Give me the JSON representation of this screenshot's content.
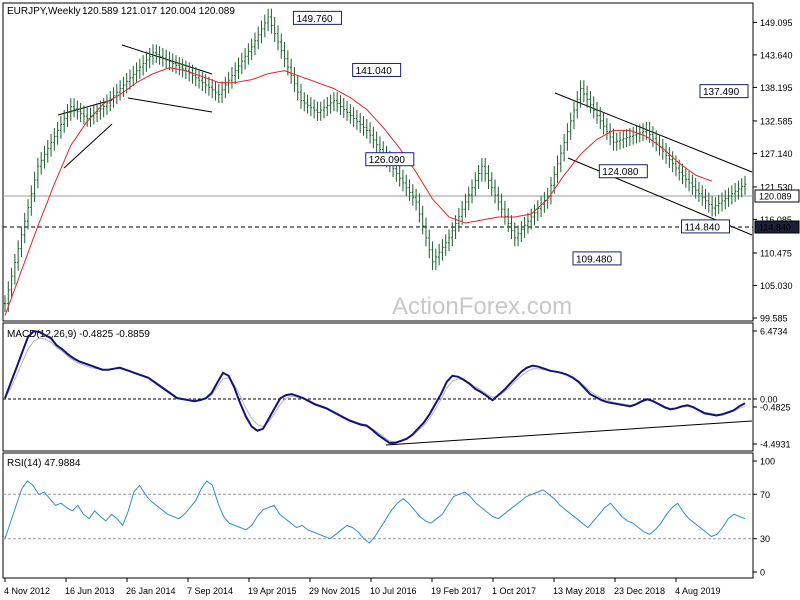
{
  "chart_data": {
    "type": "line",
    "title": "EURJPY,Weekly",
    "ohlc_header": "120.589 121.017 120.004 120.089",
    "watermark": "ActionForex.com",
    "x_ticks": [
      "4 Nov 2012",
      "16 Jun 2013",
      "26 Jan 2014",
      "7 Sep 2014",
      "19 Apr 2015",
      "29 Nov 2015",
      "10 Jul 2016",
      "19 Feb 2017",
      "1 Oct 2017",
      "13 May 2018",
      "23 Dec 2018",
      "4 Aug 2019"
    ],
    "price_panel": {
      "y_ticks": [
        "149.095",
        "143.640",
        "138.195",
        "132.585",
        "127.140",
        "121.530",
        "116.085",
        "110.475",
        "105.030",
        "99.585"
      ],
      "y_range": [
        99.585,
        152.0
      ],
      "current_price": "120.089",
      "support_level": "114.840",
      "annotations": [
        {
          "text": "149.760",
          "x_index": 95,
          "y": 149.76
        },
        {
          "text": "141.040",
          "x_index": 113,
          "y": 141.04
        },
        {
          "text": "126.090",
          "x_index": 117,
          "y": 126.09
        },
        {
          "text": "124.080",
          "x_index": 188,
          "y": 124.08
        },
        {
          "text": "114.840",
          "x_index": 213,
          "y": 114.84
        },
        {
          "text": "109.480",
          "x_index": 180,
          "y": 109.48
        },
        {
          "text": "137.490",
          "x_index": 268,
          "y": 137.49
        }
      ],
      "close_series": [
        102.0,
        104.3,
        106.6,
        108.9,
        111.2,
        113.5,
        115.8,
        118.1,
        120.4,
        122.7,
        125.0,
        126.0,
        127.0,
        128.0,
        129.0,
        130.0,
        131.0,
        132.0,
        133.0,
        134.0,
        135.0,
        134.6,
        134.2,
        133.8,
        133.4,
        133.0,
        133.4,
        133.8,
        134.2,
        134.6,
        135.0,
        135.6,
        136.2,
        136.8,
        137.4,
        138.0,
        138.6,
        139.2,
        139.8,
        140.4,
        141.0,
        141.6,
        142.2,
        142.8,
        143.4,
        144.0,
        143.7,
        143.4,
        143.1,
        142.8,
        142.5,
        142.2,
        141.9,
        141.6,
        141.3,
        141.0,
        140.6,
        140.2,
        139.8,
        139.4,
        139.0,
        138.6,
        138.2,
        137.8,
        137.4,
        137.0,
        137.8,
        138.6,
        139.4,
        140.2,
        141.0,
        141.8,
        142.6,
        143.4,
        144.2,
        145.0,
        146.0,
        147.0,
        148.0,
        149.0,
        150.0,
        148.6,
        147.2,
        145.8,
        144.4,
        143.0,
        141.6,
        140.2,
        138.8,
        137.4,
        136.0,
        135.6,
        135.2,
        134.8,
        134.4,
        134.0,
        134.4,
        134.8,
        135.2,
        135.6,
        136.0,
        135.5,
        135.0,
        134.5,
        134.0,
        133.5,
        133.0,
        132.5,
        132.0,
        131.5,
        131.0,
        130.2,
        129.4,
        128.6,
        127.8,
        127.0,
        126.2,
        125.4,
        124.6,
        123.8,
        123.0,
        122.2,
        121.4,
        120.6,
        119.8,
        119.0,
        117.0,
        115.0,
        113.0,
        111.0,
        109.0,
        109.8,
        110.6,
        111.4,
        112.2,
        113.0,
        114.2,
        115.4,
        116.6,
        117.8,
        119.0,
        120.2,
        121.4,
        122.6,
        123.8,
        125.0,
        123.8,
        122.6,
        121.4,
        120.2,
        119.0,
        117.8,
        116.6,
        115.4,
        114.2,
        113.0,
        113.7,
        114.4,
        115.1,
        115.8,
        116.5,
        117.2,
        117.9,
        118.6,
        119.3,
        120.0,
        121.8,
        123.6,
        125.4,
        127.2,
        129.0,
        130.8,
        132.6,
        134.4,
        136.2,
        138.0,
        137.1,
        136.2,
        135.3,
        134.4,
        133.5,
        132.6,
        131.7,
        130.8,
        129.9,
        129.0,
        129.2,
        129.4,
        129.6,
        129.8,
        130.0,
        130.2,
        130.4,
        130.6,
        130.8,
        131.0,
        130.3,
        129.6,
        128.9,
        128.2,
        127.5,
        126.8,
        126.1,
        125.4,
        124.7,
        124.0,
        123.4,
        122.8,
        122.2,
        121.6,
        121.0,
        120.4,
        119.8,
        119.2,
        118.6,
        118.0,
        118.4,
        118.8,
        119.2,
        119.6,
        120.0,
        120.4,
        120.8,
        121.2,
        121.6,
        122.0
      ],
      "ma_series": [
        100.0,
        101.5,
        103.0,
        104.5,
        106.0,
        107.5,
        109.0,
        110.5,
        112.0,
        113.5,
        115.0,
        116.4,
        117.8,
        119.2,
        120.6,
        122.0,
        123.3,
        124.6,
        125.9,
        127.2,
        128.5,
        129.3,
        130.1,
        130.9,
        131.7,
        132.5,
        133.1,
        133.7,
        134.3,
        134.9,
        135.5,
        135.8,
        136.1,
        136.4,
        136.7,
        137.0,
        137.4,
        137.8,
        138.2,
        138.6,
        139.0,
        139.3,
        139.6,
        139.9,
        140.2,
        140.5,
        140.7,
        140.9,
        141.1,
        141.3,
        141.5,
        141.4,
        141.3,
        141.2,
        141.1,
        141.0,
        140.8,
        140.6,
        140.4,
        140.2,
        140.0,
        139.8,
        139.6,
        139.4,
        139.2,
        139.0,
        139.0,
        139.0,
        139.0,
        139.0,
        139.0,
        139.1,
        139.2,
        139.3,
        139.4,
        139.5,
        139.7,
        139.9,
        140.1,
        140.3,
        140.5,
        140.6,
        140.7,
        140.8,
        140.9,
        141.0,
        140.8,
        140.6,
        140.4,
        140.2,
        140.0,
        139.8,
        139.6,
        139.4,
        139.2,
        139.0,
        138.8,
        138.6,
        138.4,
        138.2,
        138.0,
        137.7,
        137.4,
        137.1,
        136.8,
        136.5,
        136.1,
        135.7,
        135.3,
        134.9,
        134.5,
        133.9,
        133.3,
        132.7,
        132.1,
        131.5,
        130.8,
        130.1,
        129.4,
        128.7,
        128.0,
        127.2,
        126.4,
        125.6,
        124.8,
        124.0,
        123.1,
        122.2,
        121.3,
        120.4,
        119.5,
        118.9,
        118.3,
        117.7,
        117.1,
        116.5,
        116.3,
        116.1,
        115.9,
        115.7,
        115.5,
        115.6,
        115.7,
        115.8,
        115.9,
        116.0,
        116.1,
        116.2,
        116.3,
        116.4,
        116.5,
        116.5,
        116.5,
        116.5,
        116.5,
        116.5,
        116.6,
        116.7,
        116.8,
        116.9,
        117.0,
        117.5,
        118.0,
        118.5,
        119.0,
        119.5,
        120.3,
        121.1,
        121.9,
        122.7,
        123.5,
        124.2,
        124.9,
        125.6,
        126.3,
        127.0,
        127.5,
        128.0,
        128.5,
        129.0,
        129.5,
        129.8,
        130.1,
        130.4,
        130.7,
        131.0,
        131.0,
        131.0,
        131.0,
        131.0,
        131.0,
        130.8,
        130.6,
        130.4,
        130.2,
        130.0,
        129.6,
        129.2,
        128.8,
        128.4,
        128.0,
        127.5,
        127.0,
        126.5,
        126.0,
        125.5,
        125.1,
        124.7,
        124.3,
        123.9,
        123.5,
        123.3,
        123.1,
        122.9,
        122.7,
        122.5
      ]
    },
    "macd_panel": {
      "label": "MACD(12,26,9) -0.4825 -0.8859",
      "y_ticks": [
        "6.4734",
        "0.00",
        "-0.4825",
        "-4.4931"
      ],
      "y_range": [
        -4.9,
        7.0
      ],
      "macd_series": [
        0.0,
        1.5,
        3.0,
        4.5,
        6.0,
        6.6,
        6.5,
        6.2,
        5.9,
        5.2,
        4.8,
        4.3,
        3.9,
        3.6,
        3.4,
        3.2,
        3.0,
        2.8,
        2.8,
        2.9,
        3.0,
        2.8,
        2.6,
        2.4,
        2.2,
        2.0,
        1.6,
        1.2,
        0.8,
        0.4,
        0.0,
        -0.1,
        -0.2,
        -0.3,
        -0.2,
        0.0,
        0.5,
        1.5,
        2.5,
        2.2,
        1.0,
        -0.5,
        -1.8,
        -2.8,
        -3.2,
        -3.0,
        -2.0,
        -1.0,
        0.0,
        0.3,
        0.4,
        0.2,
        0.0,
        -0.3,
        -0.6,
        -0.8,
        -1.0,
        -1.3,
        -1.6,
        -1.9,
        -2.2,
        -2.4,
        -2.6,
        -2.7,
        -3.1,
        -3.6,
        -4.0,
        -4.4,
        -4.4,
        -4.2,
        -4.0,
        -3.6,
        -3.0,
        -2.4,
        -1.6,
        -0.6,
        0.4,
        1.6,
        2.2,
        2.1,
        1.8,
        1.4,
        0.9,
        0.6,
        0.2,
        -0.2,
        0.3,
        0.8,
        1.4,
        2.0,
        2.6,
        3.0,
        3.2,
        3.1,
        2.9,
        2.7,
        2.6,
        2.5,
        2.3,
        2.0,
        1.6,
        1.0,
        0.4,
        0.1,
        -0.2,
        -0.4,
        -0.5,
        -0.6,
        -0.7,
        -0.8,
        -0.6,
        -0.3,
        -0.1,
        -0.3,
        -0.6,
        -0.9,
        -1.1,
        -1.0,
        -0.8,
        -0.7,
        -0.9,
        -1.2,
        -1.5,
        -1.6,
        -1.7,
        -1.6,
        -1.4,
        -1.2,
        -0.8,
        -0.5
      ],
      "signal_series": [
        0.0,
        1.0,
        2.2,
        3.5,
        4.8,
        5.6,
        5.9,
        5.8,
        5.5,
        5.0,
        4.6,
        4.1,
        3.7,
        3.4,
        3.2,
        3.0,
        2.9,
        2.8,
        2.8,
        2.9,
        2.9,
        2.8,
        2.6,
        2.4,
        2.2,
        2.0,
        1.7,
        1.3,
        0.9,
        0.5,
        0.1,
        0.0,
        -0.1,
        -0.2,
        -0.2,
        -0.1,
        0.3,
        1.1,
        1.9,
        2.0,
        1.3,
        0.2,
        -1.0,
        -2.0,
        -2.6,
        -2.8,
        -2.3,
        -1.5,
        -0.6,
        0.0,
        0.2,
        0.1,
        0.0,
        -0.2,
        -0.5,
        -0.7,
        -0.9,
        -1.2,
        -1.5,
        -1.8,
        -2.1,
        -2.3,
        -2.5,
        -2.6,
        -3.0,
        -3.4,
        -3.8,
        -4.2,
        -4.3,
        -4.2,
        -4.0,
        -3.7,
        -3.2,
        -2.7,
        -2.0,
        -1.1,
        -0.1,
        1.0,
        1.7,
        1.9,
        1.8,
        1.5,
        1.1,
        0.8,
        0.4,
        0.1,
        0.2,
        0.6,
        1.1,
        1.7,
        2.2,
        2.6,
        2.9,
        2.9,
        2.8,
        2.7,
        2.6,
        2.5,
        2.3,
        2.1,
        1.7,
        1.2,
        0.7,
        0.3,
        0.0,
        -0.2,
        -0.4,
        -0.5,
        -0.6,
        -0.7,
        -0.6,
        -0.4,
        -0.2,
        -0.3,
        -0.5,
        -0.8,
        -1.0,
        -1.0,
        -0.9,
        -0.8,
        -0.9,
        -1.1,
        -1.4,
        -1.5,
        -1.6,
        -1.6,
        -1.5,
        -1.3,
        -1.0,
        -0.8
      ]
    },
    "rsi_panel": {
      "label": "RSI(14) 47.9884",
      "y_ticks": [
        "100",
        "70",
        "30",
        "0"
      ],
      "y_range": [
        0,
        100
      ],
      "levels": [
        70,
        30
      ],
      "rsi_series": [
        30,
        45,
        60,
        75,
        82,
        78,
        70,
        72,
        66,
        60,
        62,
        58,
        55,
        60,
        52,
        48,
        55,
        50,
        46,
        52,
        48,
        42,
        55,
        72,
        78,
        70,
        64,
        60,
        56,
        52,
        50,
        48,
        52,
        58,
        64,
        75,
        82,
        78,
        62,
        50,
        44,
        42,
        40,
        38,
        42,
        50,
        56,
        58,
        60,
        52,
        48,
        44,
        40,
        42,
        38,
        36,
        34,
        32,
        30,
        34,
        38,
        42,
        40,
        36,
        30,
        26,
        32,
        40,
        48,
        56,
        62,
        66,
        62,
        56,
        50,
        46,
        44,
        48,
        52,
        60,
        68,
        70,
        72,
        68,
        62,
        58,
        54,
        50,
        48,
        52,
        56,
        60,
        64,
        68,
        70,
        72,
        74,
        70,
        66,
        60,
        56,
        52,
        48,
        44,
        40,
        46,
        52,
        58,
        62,
        56,
        50,
        46,
        44,
        40,
        36,
        34,
        38,
        44,
        52,
        58,
        62,
        54,
        48,
        44,
        40,
        36,
        32,
        34,
        40,
        48,
        52,
        50,
        48
      ]
    }
  }
}
